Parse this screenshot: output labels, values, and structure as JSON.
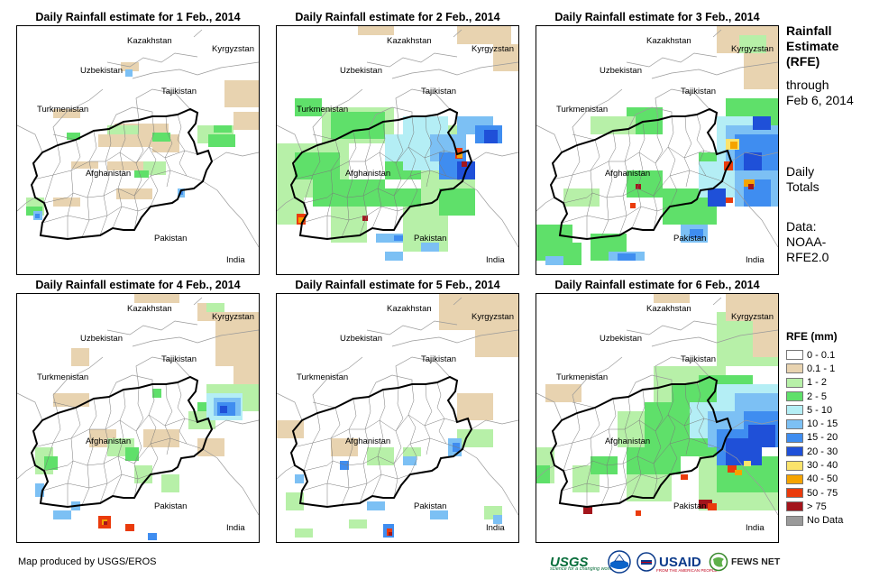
{
  "panels": [
    {
      "title": "Daily Rainfall estimate for 1 Feb., 2014",
      "day": 1
    },
    {
      "title": "Daily Rainfall estimate for 2 Feb., 2014",
      "day": 2
    },
    {
      "title": "Daily Rainfall estimate for 3 Feb., 2014",
      "day": 3
    },
    {
      "title": "Daily Rainfall estimate for 4 Feb., 2014",
      "day": 4
    },
    {
      "title": "Daily Rainfall estimate for 5 Feb., 2014",
      "day": 5
    },
    {
      "title": "Daily Rainfall estimate for 6 Feb., 2014",
      "day": 6
    }
  ],
  "country_labels": [
    "Kazakhstan",
    "Kyrgyzstan",
    "Uzbekistan",
    "Tajikistan",
    "Turkmenistan",
    "Afghanistan",
    "Pakistan",
    "India"
  ],
  "side": {
    "title_lines": [
      "Rainfall",
      "Estimate",
      "(RFE)"
    ],
    "through_lines": [
      "through",
      "Feb 6, 2014"
    ],
    "daily_lines": [
      "Daily",
      "Totals"
    ],
    "data_lines": [
      "Data:",
      "NOAA-",
      "RFE2.0"
    ]
  },
  "legend": {
    "title": "RFE (mm)",
    "items": [
      {
        "label": "0 - 0.1",
        "color": "#ffffff"
      },
      {
        "label": "0.1 - 1",
        "color": "#e8d3b0"
      },
      {
        "label": "1 - 2",
        "color": "#b7f0a8"
      },
      {
        "label": "2 - 5",
        "color": "#5fe06a"
      },
      {
        "label": "5 - 10",
        "color": "#b4eef5"
      },
      {
        "label": "10 - 15",
        "color": "#7cc0f4"
      },
      {
        "label": "15 - 20",
        "color": "#3f8df0"
      },
      {
        "label": "20 - 30",
        "color": "#1f50d8"
      },
      {
        "label": "30 - 40",
        "color": "#fbe36b"
      },
      {
        "label": "40 - 50",
        "color": "#f5a300"
      },
      {
        "label": "50 - 75",
        "color": "#ea3b0c"
      },
      {
        "label": "> 75",
        "color": "#a3151c"
      },
      {
        "label": "No Data",
        "color": "#9a9a9a"
      }
    ]
  },
  "credit": "Map produced by USGS/EROS",
  "logos": {
    "usgs": "USGS",
    "usgs_tagline": "science for a changing world",
    "usaid": "USAID",
    "usaid_tagline": "FROM THE AMERICAN PEOPLE",
    "fews": "FEWS NET"
  }
}
